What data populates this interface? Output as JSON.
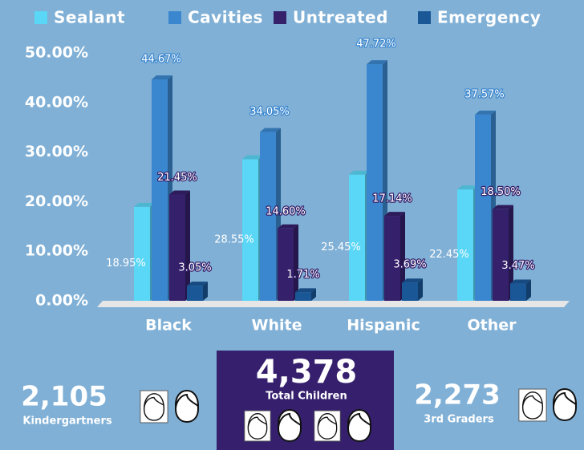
{
  "chart_data": {
    "type": "bar",
    "categories": [
      "Black",
      "White",
      "Hispanic",
      "Other"
    ],
    "series": [
      {
        "name": "Sealant",
        "color": "#5ad6f6",
        "values": [
          18.95,
          28.55,
          25.45,
          22.45
        ],
        "value_labels": [
          "18.95%",
          "28.55%",
          "25.45%",
          "22.45%"
        ]
      },
      {
        "name": "Cavities",
        "color": "#3b87cf",
        "values": [
          44.67,
          34.05,
          47.72,
          37.57
        ],
        "value_labels": [
          "44.67%",
          "34.05%",
          "47.72%",
          "37.57%"
        ]
      },
      {
        "name": "Untreated",
        "color": "#35206b",
        "values": [
          21.45,
          14.6,
          17.14,
          18.5
        ],
        "value_labels": [
          "21.45%",
          "14.60%",
          "17.14%",
          "18.50%"
        ]
      },
      {
        "name": "Emergency",
        "color": "#1a5797",
        "values": [
          3.05,
          1.71,
          3.69,
          3.47
        ],
        "value_labels": [
          "3.05%",
          "1.71%",
          "3.69%",
          "3.47%"
        ]
      }
    ],
    "ylim": [
      0,
      50
    ],
    "yticks": [
      {
        "value": 0,
        "label": "0.00%"
      },
      {
        "value": 10,
        "label": "10.00%"
      },
      {
        "value": 20,
        "label": "20.00%"
      },
      {
        "value": 30,
        "label": "30.00%"
      },
      {
        "value": 40,
        "label": "40.00%"
      },
      {
        "value": 50,
        "label": "50.00%"
      }
    ]
  },
  "stats": [
    {
      "value": "2,105",
      "label": "Kindergartners"
    },
    {
      "value": "4,378",
      "label": "Total Children"
    },
    {
      "value": "2,273",
      "label": "3rd Graders"
    }
  ]
}
